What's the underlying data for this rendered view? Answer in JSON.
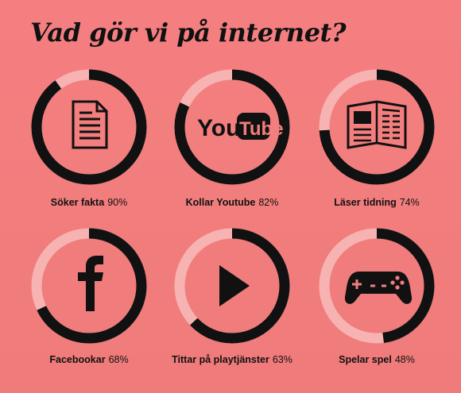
{
  "title": "Vad gör vi på internet?",
  "colors": {
    "background": "#f47e7f",
    "ring_light": "#f6b3b1",
    "ring_dark": "#111111"
  },
  "chart_data": {
    "type": "donut-grid",
    "items": [
      {
        "label": "Söker fakta",
        "value_text": "90%",
        "value": 90,
        "icon": "document-icon"
      },
      {
        "label": "Kollar Youtube",
        "value_text": "82%",
        "value": 82,
        "icon": "youtube-logo-icon"
      },
      {
        "label": "Läser tidning",
        "value_text": "74%",
        "value": 74,
        "icon": "newspaper-icon"
      },
      {
        "label": "Facebookar",
        "value_text": "68%",
        "value": 68,
        "icon": "facebook-icon"
      },
      {
        "label": "Tittar på playtjänster",
        "value_text": "63%",
        "value": 63,
        "icon": "play-icon"
      },
      {
        "label": "Spelar spel",
        "value_text": "48%",
        "value": 48,
        "icon": "gamepad-icon"
      }
    ]
  }
}
